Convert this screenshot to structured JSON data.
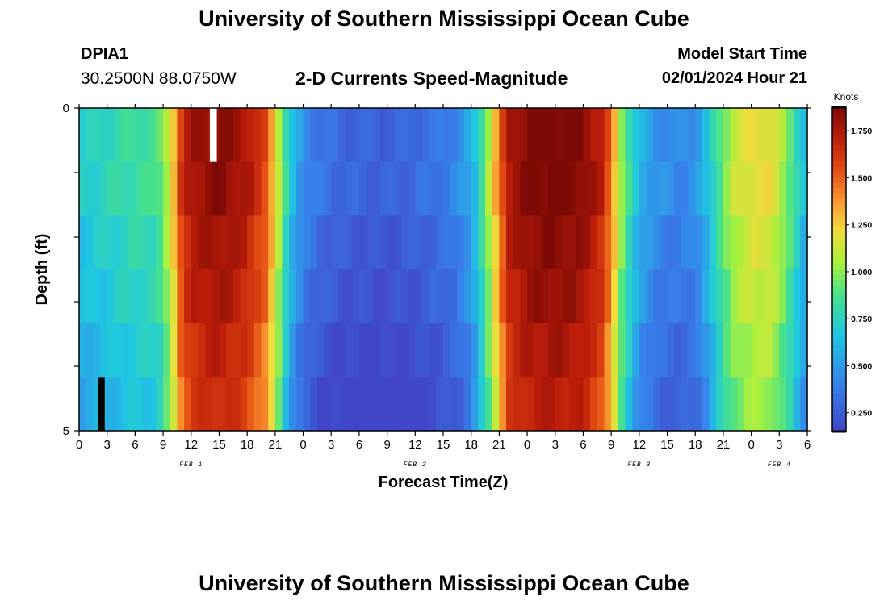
{
  "header": {
    "title": "University of Southern Mississippi Ocean Cube",
    "station_id": "DPIA1",
    "coords": "30.2500N  88.0750W",
    "subtitle": "2-D Currents Speed-Magnitude",
    "start_label": "Model Start Time",
    "start_value": "02/01/2024 Hour 21"
  },
  "footer": {
    "title": "University of Southern Mississippi Ocean Cube"
  },
  "chart_data": {
    "type": "heatmap",
    "title": "2-D Currents Speed-Magnitude",
    "xlabel": "Forecast Time(Z)",
    "ylabel": "Depth (ft)",
    "colorbar_label": "Knots",
    "x_range_hours": [
      0,
      78
    ],
    "y_range": [
      0,
      5
    ],
    "x_tick_labels": [
      "0",
      "3",
      "6",
      "9",
      "12",
      "15",
      "18",
      "21",
      "0",
      "3",
      "6",
      "9",
      "12",
      "15",
      "18",
      "21",
      "0",
      "3",
      "6",
      "9",
      "12",
      "15",
      "18",
      "21",
      "0",
      "3",
      "6"
    ],
    "y_tick_labels": [
      "0",
      "5"
    ],
    "date_labels": [
      {
        "label": "FEB 1",
        "hour": 12
      },
      {
        "label": "FEB 2",
        "hour": 36
      },
      {
        "label": "FEB 3",
        "hour": 60
      },
      {
        "label": "FEB 4",
        "hour": 75
      }
    ],
    "colorbar_range": [
      0.15,
      1.875
    ],
    "colorbar_ticks": [
      "0.250",
      "0.500",
      "0.750",
      "1.000",
      "1.250",
      "1.500",
      "1.750"
    ],
    "colorbar_tick_values": [
      0.25,
      0.5,
      0.75,
      1.0,
      1.25,
      1.5,
      1.75
    ],
    "speed_profile": [
      [
        0,
        0.65
      ],
      [
        3,
        0.72
      ],
      [
        6,
        0.78
      ],
      [
        8,
        0.8
      ],
      [
        9,
        0.9
      ],
      [
        10,
        1.2
      ],
      [
        11,
        1.6
      ],
      [
        12,
        1.72
      ],
      [
        15,
        1.8
      ],
      [
        18,
        1.7
      ],
      [
        20,
        1.5
      ],
      [
        21,
        1.2
      ],
      [
        22,
        0.8
      ],
      [
        23,
        0.55
      ],
      [
        24,
        0.4
      ],
      [
        26,
        0.3
      ],
      [
        28,
        0.25
      ],
      [
        30,
        0.24
      ],
      [
        32,
        0.22
      ],
      [
        34,
        0.23
      ],
      [
        36,
        0.26
      ],
      [
        38,
        0.3
      ],
      [
        40,
        0.36
      ],
      [
        42,
        0.5
      ],
      [
        43,
        0.75
      ],
      [
        44,
        1.05
      ],
      [
        45,
        1.4
      ],
      [
        46,
        1.7
      ],
      [
        48,
        1.82
      ],
      [
        51,
        1.85
      ],
      [
        54,
        1.8
      ],
      [
        56,
        1.65
      ],
      [
        57,
        1.4
      ],
      [
        58,
        1.0
      ],
      [
        59,
        0.75
      ],
      [
        60,
        0.55
      ],
      [
        62,
        0.42
      ],
      [
        64,
        0.38
      ],
      [
        66,
        0.42
      ],
      [
        67,
        0.55
      ],
      [
        68,
        0.72
      ],
      [
        69,
        0.9
      ],
      [
        70,
        1.05
      ],
      [
        72,
        1.15
      ],
      [
        74,
        1.15
      ],
      [
        75,
        1.05
      ],
      [
        76,
        0.9
      ],
      [
        77,
        0.7
      ],
      [
        78,
        0.55
      ]
    ],
    "depth_shallow_bias": [
      0.05,
      0.05,
      0,
      -0.03,
      -0.08,
      -0.12
    ],
    "missing_cells": [
      {
        "hour": 14,
        "depth_layer": 0,
        "color": "#ffffff"
      },
      {
        "hour": 2,
        "depth_layer": 5,
        "color": "#000000"
      }
    ],
    "grid": false,
    "legend": "right"
  }
}
